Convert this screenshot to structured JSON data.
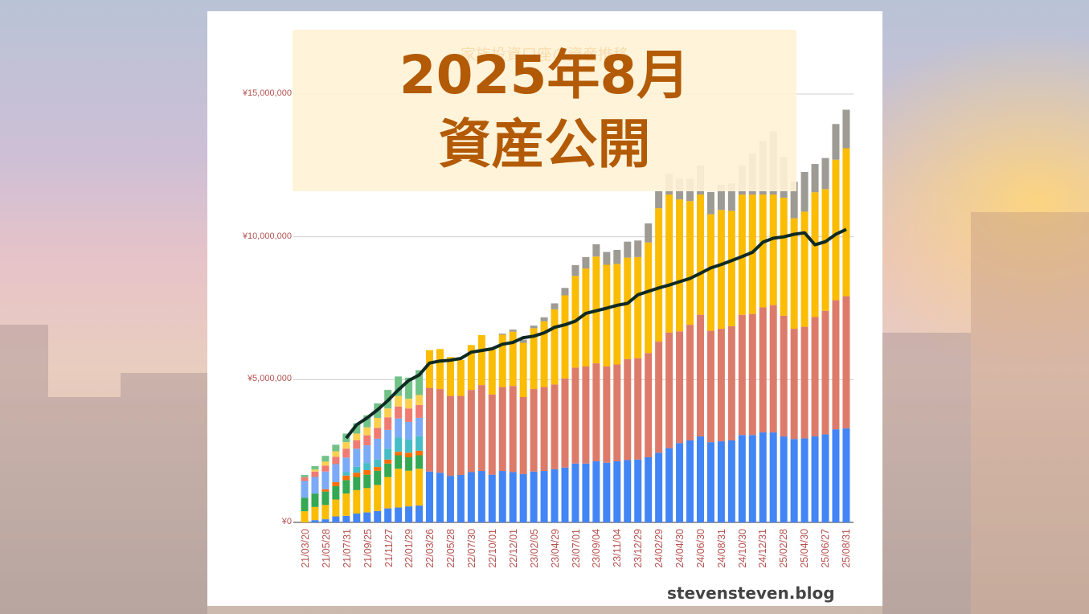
{
  "thumbnail": {
    "headline_line1": "2025年8月",
    "headline_line2": "資産公開",
    "watermark": "stevensteven.blog",
    "accent_color": "#b35a06"
  },
  "chart_data": {
    "type": "bar",
    "stacked": true,
    "title": "家族投資口座の資産推移",
    "ylim": [
      0,
      15000000
    ],
    "y_tick_labels": [
      "¥0",
      "¥5,000,000",
      "¥10,000,000",
      "¥15,000,000"
    ],
    "y_ticks": [
      0,
      5000000,
      10000000,
      15000000
    ],
    "x_tick_labels": [
      "21/03/20",
      "21/05/28",
      "21/07/31",
      "21/09/25",
      "21/11/27",
      "22/01/29",
      "22/03/26",
      "22/05/28",
      "22/07/30",
      "22/10/01",
      "22/12/01",
      "23/02/05",
      "23/04/29",
      "23/07/01",
      "23/09/04",
      "23/11/04",
      "23/12/29",
      "24/02/29",
      "24/04/30",
      "24/06/30",
      "24/08/31",
      "24/10/30",
      "24/12/31",
      "25/02/28",
      "25/04/30",
      "25/06/27",
      "25/08/31"
    ],
    "grid": true,
    "legend": "none",
    "series": [
      {
        "color": "#4285f4",
        "values": [
          0,
          80000,
          110000,
          210000,
          230000,
          310000,
          350000,
          400000,
          490000,
          520000,
          560000,
          590000,
          1780000,
          1740000,
          1630000,
          1660000,
          1760000,
          1800000,
          1670000,
          1800000,
          1760000,
          1690000,
          1780000,
          1800000,
          1860000,
          1920000,
          2060000,
          2060000,
          2140000,
          2090000,
          2140000,
          2180000,
          2200000,
          2280000,
          2440000,
          2600000,
          2780000,
          2870000,
          3010000,
          2810000,
          2840000,
          2870000,
          3060000,
          3060000,
          3150000,
          3150000,
          3010000,
          2920000,
          2940000,
          3010000,
          3080000,
          3260000,
          3290000
        ]
      },
      {
        "color": "#dd7b6b",
        "values": [
          0,
          0,
          0,
          0,
          0,
          0,
          0,
          0,
          0,
          0,
          0,
          0,
          2930000,
          2930000,
          2800000,
          2770000,
          2880000,
          3010000,
          2810000,
          2940000,
          3020000,
          2700000,
          2890000,
          2940000,
          2970000,
          3120000,
          3360000,
          3400000,
          3430000,
          3370000,
          3390000,
          3540000,
          3550000,
          3650000,
          3890000,
          4050000,
          3910000,
          4050000,
          4260000,
          3900000,
          3940000,
          4000000,
          4210000,
          4240000,
          4380000,
          4460000,
          4230000,
          3860000,
          3910000,
          4180000,
          4330000,
          4520000,
          4630000
        ]
      },
      {
        "color": "#fbbc04",
        "values": [
          390000,
          460000,
          500000,
          590000,
          780000,
          820000,
          850000,
          910000,
          1100000,
          1360000,
          1250000,
          1290000,
          1320000,
          1400000,
          1360000,
          1260000,
          1570000,
          1750000,
          1570000,
          1830000,
          1900000,
          1900000,
          2130000,
          2300000,
          2630000,
          2910000,
          3210000,
          3430000,
          3740000,
          3560000,
          3520000,
          3550000,
          3540000,
          3870000,
          4670000,
          4830000,
          4620000,
          4330000,
          4210000,
          4080000,
          4160000,
          4040000,
          4210000,
          4180000,
          3950000,
          3870000,
          4130000,
          3870000,
          4030000,
          4370000,
          4260000,
          4920000,
          5180000
        ]
      },
      {
        "color": "#34a853",
        "values": [
          470000,
          470000,
          470000,
          470000,
          470000,
          460000,
          470000,
          500000,
          470000,
          470000,
          470000,
          470000
        ]
      },
      {
        "color": "#ff6d01",
        "values": [
          0,
          0,
          80000,
          140000,
          160000,
          150000,
          160000,
          130000,
          140000,
          120000,
          160000,
          160000
        ]
      },
      {
        "color": "#46bdc6",
        "values": [
          0,
          0,
          0,
          0,
          120000,
          210000,
          250000,
          260000,
          380000,
          510000,
          470000,
          510000
        ]
      },
      {
        "color": "#7baaf7",
        "values": [
          590000,
          580000,
          620000,
          630000,
          510000,
          630000,
          620000,
          730000,
          660000,
          660000,
          610000,
          640000
        ]
      },
      {
        "color": "#f07b72",
        "values": [
          130000,
          190000,
          210000,
          260000,
          310000,
          300000,
          350000,
          380000,
          440000,
          420000,
          470000,
          450000
        ]
      },
      {
        "color": "#fcd04f",
        "values": [
          0,
          70000,
          140000,
          190000,
          230000,
          230000,
          280000,
          350000,
          310000,
          370000,
          340000,
          350000
        ]
      },
      {
        "color": "#71c287",
        "values": [
          80000,
          120000,
          200000,
          230000,
          300000,
          360000,
          420000,
          510000,
          650000,
          680000,
          740000,
          870000
        ]
      },
      {
        "color": "#9e9a94",
        "values": [
          0,
          0,
          0,
          0,
          0,
          0,
          0,
          0,
          0,
          0,
          0,
          0,
          0,
          0,
          0,
          0,
          0,
          0,
          0,
          40000,
          70000,
          110000,
          90000,
          140000,
          210000,
          260000,
          380000,
          400000,
          430000,
          450000,
          490000,
          560000,
          580000,
          670000,
          600000,
          720000,
          730000,
          790000,
          1020000,
          780000,
          890000,
          960000,
          1020000,
          1440000,
          1870000,
          2210000,
          1430000,
          1280000,
          1390000,
          990000,
          1090000,
          1250000,
          1350000
        ]
      }
    ],
    "line": {
      "color": "#0f2a24",
      "values": [
        null,
        null,
        null,
        null,
        2950000,
        3420000,
        3660000,
        3940000,
        4270000,
        4640000,
        4970000,
        5160000,
        5580000,
        5650000,
        5680000,
        5740000,
        5960000,
        6020000,
        6080000,
        6240000,
        6300000,
        6470000,
        6520000,
        6640000,
        6830000,
        6920000,
        7050000,
        7320000,
        7410000,
        7500000,
        7600000,
        7670000,
        7970000,
        8090000,
        8210000,
        8310000,
        8430000,
        8540000,
        8720000,
        8910000,
        9030000,
        9170000,
        9310000,
        9460000,
        9810000,
        9950000,
        10000000,
        10090000,
        10140000,
        9720000,
        9830000,
        10090000,
        10260000
      ]
    }
  }
}
